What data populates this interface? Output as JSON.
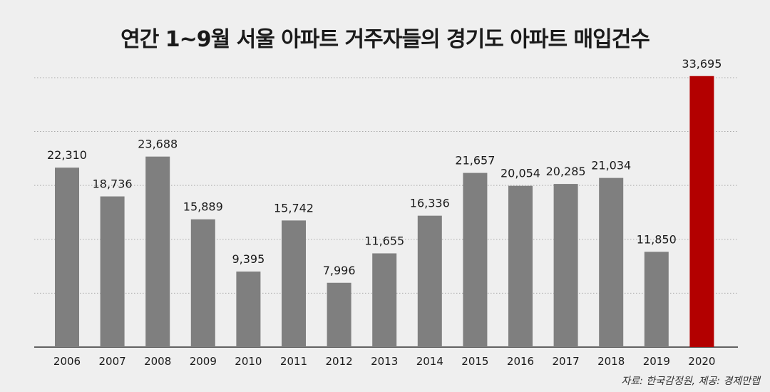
{
  "chart_data": {
    "type": "bar",
    "title": "연간 1~9월 서울 아파트 거주자들의 경기도 아파트 매입건수",
    "categories": [
      "2006",
      "2007",
      "2008",
      "2009",
      "2010",
      "2011",
      "2012",
      "2013",
      "2014",
      "2015",
      "2016",
      "2017",
      "2018",
      "2019",
      "2020"
    ],
    "values": [
      22310,
      18736,
      23688,
      15889,
      9395,
      15742,
      7996,
      11655,
      16336,
      21657,
      20054,
      20285,
      21034,
      11850,
      33695
    ],
    "value_labels": [
      "22,310",
      "18,736",
      "23,688",
      "15,889",
      "9,395",
      "15,742",
      "7,996",
      "11,655",
      "16,336",
      "21,657",
      "20,054",
      "20,285",
      "21,034",
      "11,850",
      "33,695"
    ],
    "highlight_index": 14,
    "ylim": [
      0,
      35000
    ],
    "grid": true,
    "colors": {
      "bar": "#7f7f7f",
      "highlight": "#b30000",
      "highlight_label": "#b30000",
      "grid": "#aaaaaa",
      "axis": "#333333"
    }
  },
  "source_note": "자료: 한국감정원, 제공: 경제만랩"
}
